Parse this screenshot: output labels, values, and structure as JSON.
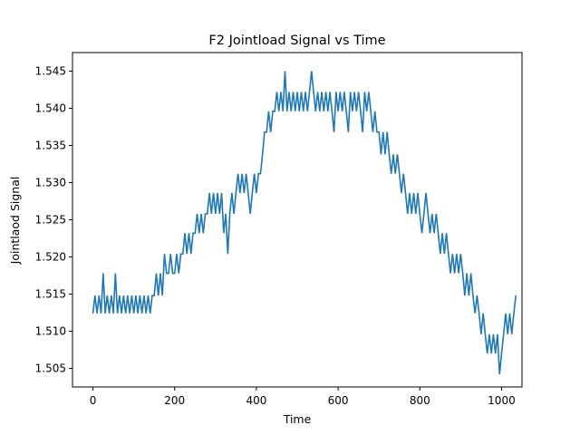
{
  "chart_data": {
    "type": "line",
    "title": "F2 Jointload Signal vs Time",
    "xlabel": "Time",
    "ylabel": "Jointlaod Signal",
    "xlim": [
      -50,
      1050
    ],
    "ylim": [
      1.5025,
      1.5475
    ],
    "xticks": [
      0,
      200,
      400,
      600,
      800,
      1000
    ],
    "yticks": [
      1.505,
      1.51,
      1.515,
      1.52,
      1.525,
      1.53,
      1.535,
      1.54,
      1.545
    ],
    "ytick_labels": [
      "1.505",
      "1.510",
      "1.515",
      "1.520",
      "1.525",
      "1.530",
      "1.535",
      "1.540",
      "1.545"
    ],
    "grid": false,
    "series": [
      {
        "color": "#1f77b4",
        "x_start": 0,
        "x_step": 5,
        "values": [
          1.5124,
          1.5148,
          1.5124,
          1.5148,
          1.5124,
          1.5178,
          1.5124,
          1.5148,
          1.5124,
          1.5148,
          1.5124,
          1.5178,
          1.5124,
          1.5148,
          1.5124,
          1.5148,
          1.5124,
          1.5148,
          1.5124,
          1.5148,
          1.5124,
          1.5148,
          1.5124,
          1.5148,
          1.5124,
          1.5148,
          1.5124,
          1.5148,
          1.5124,
          1.5148,
          1.5148,
          1.5178,
          1.5148,
          1.5178,
          1.5148,
          1.5204,
          1.5178,
          1.5178,
          1.5204,
          1.5178,
          1.5178,
          1.5204,
          1.5178,
          1.5204,
          1.5204,
          1.5232,
          1.5204,
          1.5232,
          1.5204,
          1.5232,
          1.5232,
          1.5258,
          1.5232,
          1.5258,
          1.5232,
          1.5258,
          1.5258,
          1.5286,
          1.5258,
          1.5286,
          1.5258,
          1.5286,
          1.5258,
          1.5286,
          1.5232,
          1.5258,
          1.5204,
          1.5258,
          1.5286,
          1.5258,
          1.5286,
          1.5312,
          1.5286,
          1.5312,
          1.5286,
          1.5312,
          1.5286,
          1.5258,
          1.5286,
          1.5312,
          1.5286,
          1.5312,
          1.5312,
          1.5338,
          1.5368,
          1.5368,
          1.5396,
          1.5368,
          1.5396,
          1.5396,
          1.5422,
          1.5396,
          1.5422,
          1.5396,
          1.545,
          1.5396,
          1.5422,
          1.5396,
          1.5422,
          1.5396,
          1.5422,
          1.5396,
          1.5422,
          1.5396,
          1.5422,
          1.5396,
          1.5422,
          1.545,
          1.5422,
          1.5396,
          1.5422,
          1.5396,
          1.5422,
          1.5396,
          1.5422,
          1.5396,
          1.5422,
          1.5396,
          1.5368,
          1.5422,
          1.5396,
          1.5422,
          1.5396,
          1.5422,
          1.5396,
          1.5368,
          1.5422,
          1.5396,
          1.5422,
          1.5396,
          1.5422,
          1.5396,
          1.5368,
          1.5422,
          1.5396,
          1.5422,
          1.5396,
          1.5368,
          1.5396,
          1.5368,
          1.5368,
          1.5338,
          1.5368,
          1.5338,
          1.5368,
          1.5338,
          1.5312,
          1.5338,
          1.5312,
          1.5338,
          1.5312,
          1.5286,
          1.5312,
          1.5286,
          1.5258,
          1.5286,
          1.5258,
          1.5286,
          1.5258,
          1.5286,
          1.5258,
          1.5232,
          1.5258,
          1.5286,
          1.5258,
          1.5232,
          1.5258,
          1.5232,
          1.5258,
          1.5232,
          1.5204,
          1.5232,
          1.5204,
          1.5232,
          1.5204,
          1.5178,
          1.5204,
          1.5178,
          1.5204,
          1.5178,
          1.5204,
          1.5178,
          1.5148,
          1.5178,
          1.5148,
          1.5178,
          1.5148,
          1.5124,
          1.5148,
          1.5124,
          1.5096,
          1.5124,
          1.5096,
          1.507,
          1.5096,
          1.507,
          1.5096,
          1.507,
          1.5096,
          1.5042,
          1.507,
          1.5096,
          1.5124,
          1.5096,
          1.5124,
          1.5096,
          1.5124,
          1.5148
        ]
      }
    ]
  }
}
